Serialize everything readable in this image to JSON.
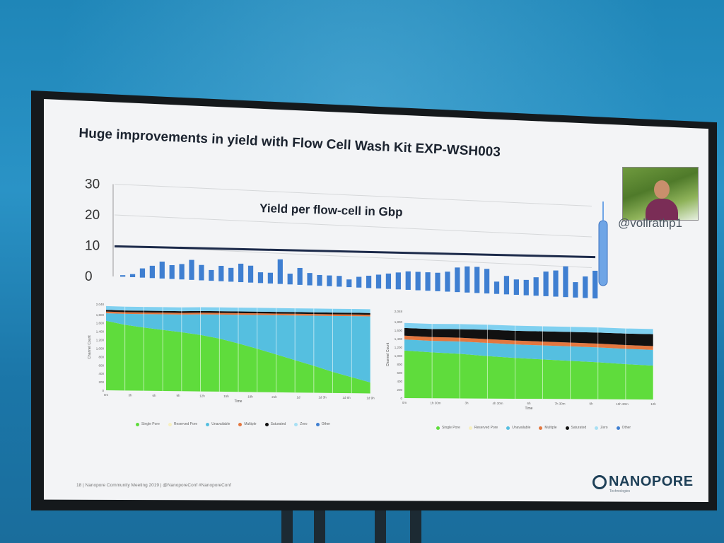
{
  "slide": {
    "title": "Huge improvements in yield with Flow Cell Wash Kit EXP-WSH003",
    "handle": "@vollrathp1",
    "footer": "18 | Nanopore Community Meeting 2019 | @NanoporeConf #NanoporeConf",
    "logo_main": "NANOPORE",
    "logo_sub": "Technologies"
  },
  "colors": {
    "bar_blue": "#3f7fd1",
    "single_pore": "#5fdc3c",
    "unavailable": "#55bfe0",
    "multiple": "#e3773f",
    "saturated": "#111111",
    "reserved": "#f7f0c0",
    "other": "#7fd0f0"
  },
  "chart_data": [
    {
      "type": "bar",
      "title": "Yield per flow-cell in Gbp",
      "ylim": [
        0,
        30
      ],
      "yticks": [
        "0",
        "10",
        "20",
        "30"
      ],
      "grid": true,
      "reference_line": 9.8,
      "values": [
        0.5,
        1,
        3,
        4,
        5.5,
        4.5,
        5,
        6.5,
        5,
        3.5,
        5,
        4.5,
        6,
        5.5,
        3.5,
        3.5,
        8,
        3.5,
        5.5,
        4,
        3.5,
        3.5,
        3.5,
        2.5,
        3.5,
        4,
        4.5,
        5,
        5.5,
        6,
        6,
        6,
        6,
        6.5,
        8,
        8.5,
        8.5,
        8,
        4,
        6,
        5,
        5,
        6,
        8,
        8.5,
        10,
        5,
        7,
        9
      ]
    },
    {
      "type": "area",
      "ylabel": "Channel Count",
      "xlabel": "Time",
      "yticks": [
        "0",
        "200",
        "400",
        "600",
        "800",
        "1,000",
        "1,200",
        "1,400",
        "1,600",
        "1,800",
        "2,048"
      ],
      "xticks": [
        "0m",
        "3h",
        "6h",
        "9h",
        "12h",
        "15h",
        "18h",
        "21h",
        "1d",
        "1d 3h",
        "1d 6h",
        "1d 9h"
      ],
      "series": [
        {
          "name": "Single Pore",
          "values": [
            1650,
            1560,
            1500,
            1450,
            1400,
            1340,
            1260,
            1150,
            1030,
            900,
            770,
            640,
            500,
            380,
            260
          ]
        },
        {
          "name": "Unavailable",
          "values": [
            180,
            260,
            320,
            370,
            420,
            490,
            570,
            680,
            800,
            930,
            1060,
            1190,
            1330,
            1450,
            1570
          ]
        },
        {
          "name": "Multiple",
          "values": [
            40,
            40,
            40,
            40,
            40,
            40,
            40,
            40,
            40,
            40,
            40,
            40,
            40,
            40,
            40
          ]
        },
        {
          "name": "Saturated",
          "values": [
            40,
            40,
            40,
            40,
            40,
            40,
            40,
            40,
            40,
            40,
            40,
            40,
            40,
            40,
            40
          ]
        },
        {
          "name": "Other",
          "values": [
            90,
            90,
            90,
            90,
            90,
            90,
            90,
            90,
            90,
            90,
            90,
            90,
            90,
            90,
            90
          ]
        }
      ],
      "legend": [
        "Single Pore",
        "Reserved Pore",
        "Unavailable",
        "Multiple",
        "Saturated",
        "Zero",
        "Other"
      ]
    },
    {
      "type": "area",
      "ylabel": "Channel Count",
      "xlabel": "Time",
      "yticks": [
        "0",
        "200",
        "400",
        "600",
        "800",
        "1,000",
        "1,200",
        "1,400",
        "1,600",
        "1,800",
        "2,048"
      ],
      "xticks": [
        "0m",
        "1h 30m",
        "3h",
        "4h 30m",
        "6h",
        "7h 30m",
        "9h",
        "10h 30m",
        "12h"
      ],
      "series": [
        {
          "name": "Single Pore",
          "values": [
            1120,
            1080,
            1050,
            1000,
            960,
            930,
            900,
            870,
            830,
            800
          ]
        },
        {
          "name": "Unavailable",
          "values": [
            260,
            270,
            290,
            310,
            320,
            330,
            340,
            350,
            360,
            370
          ]
        },
        {
          "name": "Multiple",
          "values": [
            90,
            90,
            90,
            90,
            90,
            90,
            90,
            90,
            90,
            90
          ]
        },
        {
          "name": "Saturated",
          "values": [
            180,
            190,
            200,
            220,
            230,
            240,
            250,
            260,
            270,
            280
          ]
        },
        {
          "name": "Other",
          "values": [
            120,
            120,
            120,
            120,
            120,
            120,
            120,
            120,
            120,
            120
          ]
        }
      ],
      "legend": [
        "Single Pore",
        "Reserved Pore",
        "Unavailable",
        "Multiple",
        "Saturated",
        "Zero",
        "Other"
      ]
    }
  ]
}
